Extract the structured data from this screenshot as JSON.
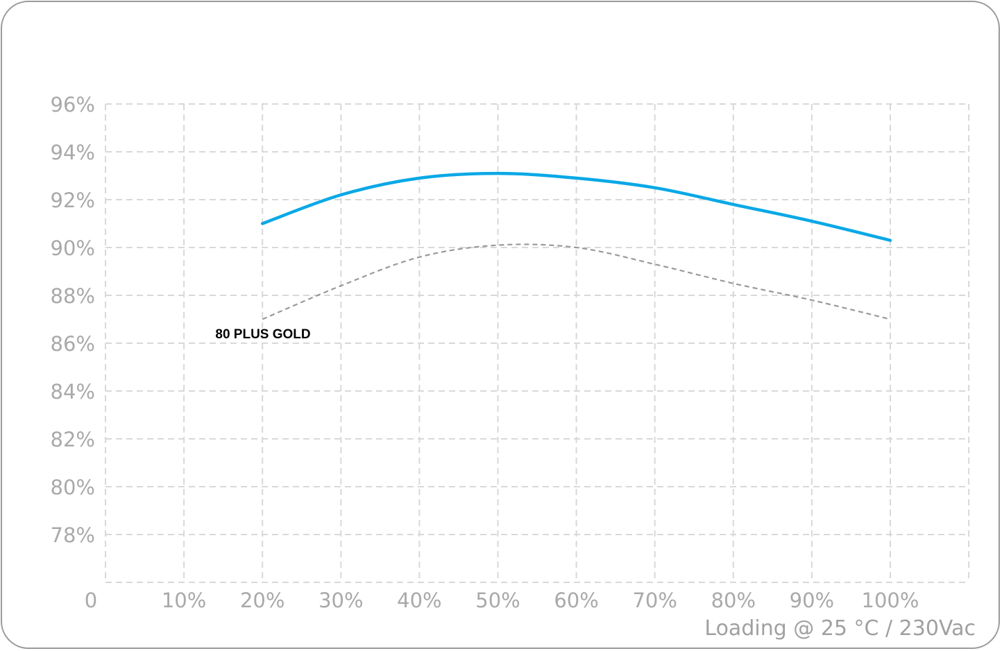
{
  "chart_data": {
    "type": "line",
    "xlabel": "Loading @ 25 °C / 230Vac",
    "ylabel": "",
    "origin_label": "0",
    "x_tick_labels": [
      "10%",
      "20%",
      "30%",
      "40%",
      "50%",
      "60%",
      "70%",
      "80%",
      "90%",
      "100%"
    ],
    "y_tick_labels": [
      "96%",
      "94%",
      "92%",
      "90%",
      "88%",
      "86%",
      "84%",
      "82%",
      "80%",
      "78%"
    ],
    "x_ticks": [
      10,
      20,
      30,
      40,
      50,
      60,
      70,
      80,
      90,
      100
    ],
    "y_ticks": [
      96,
      94,
      92,
      90,
      88,
      86,
      84,
      82,
      80,
      78
    ],
    "xlim": [
      0,
      110
    ],
    "ylim": [
      76,
      96
    ],
    "grid": true,
    "series": [
      {
        "name": "",
        "color": "#0aa8e6",
        "style": "solid",
        "x": [
          20,
          30,
          40,
          50,
          60,
          70,
          80,
          90,
          100
        ],
        "y": [
          91.0,
          92.2,
          92.9,
          93.1,
          92.9,
          92.5,
          91.8,
          91.1,
          90.3
        ]
      },
      {
        "name": "80 PLUS GOLD",
        "color": "#999999",
        "style": "dashed",
        "x": [
          20,
          30,
          40,
          50,
          60,
          70,
          80,
          90,
          100
        ],
        "y": [
          87.0,
          88.4,
          89.6,
          90.1,
          90.0,
          89.3,
          88.5,
          87.8,
          87.0
        ]
      }
    ]
  }
}
